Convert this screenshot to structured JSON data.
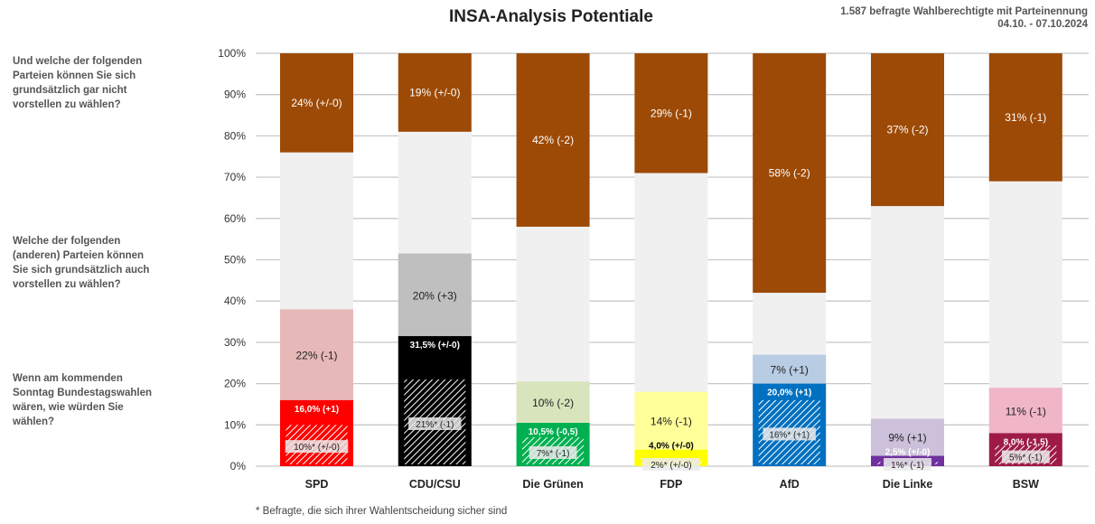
{
  "header": {
    "title": "INSA-Analysis Potentiale",
    "meta_line1": "1.587 befragte Wahlberechtigte mit Parteinennung",
    "meta_line2": "04.10. - 07.10.2024"
  },
  "questions": [
    "Und welche der folgenden Parteien können Sie sich grundsätzlich gar nicht vorstellen zu wählen?",
    "Welche der folgenden (anderen) Parteien können Sie sich grundsätzlich auch vorstellen zu wählen?",
    "Wenn am kommenden Sonntag Bundestagswahlen wären, wie würden Sie wählen?"
  ],
  "footnote": "* Befragte, die sich ihrer Wahlentscheidung sicher sind",
  "chart_data": {
    "type": "bar",
    "stacked": true,
    "ylim": [
      0,
      100
    ],
    "yticks": [
      "0%",
      "10%",
      "20%",
      "30%",
      "40%",
      "50%",
      "60%",
      "70%",
      "80%",
      "90%",
      "100%"
    ],
    "grid": true,
    "colors": {
      "rejection": "#9c4a06",
      "remainder": "#f0f0f0"
    },
    "categories": [
      "SPD",
      "CDU/CSU",
      "Die Grünen",
      "FDP",
      "AfD",
      "Die Linke",
      "BSW"
    ],
    "bars": [
      {
        "party": "SPD",
        "vote": 16.0,
        "vote_label": "16,0% (+1)",
        "vote_color": "#ff0000",
        "sure": 10,
        "sure_label": "10%* (+/-0)",
        "potential": 22,
        "potential_label": "22% (-1)",
        "potential_color": "#e6b8b7",
        "rejection": 24,
        "rejection_label": "24% (+/-0)"
      },
      {
        "party": "CDU/CSU",
        "vote": 31.5,
        "vote_label": "31,5% (+/-0)",
        "vote_color": "#000000",
        "sure": 21,
        "sure_label": "21%* (-1)",
        "potential": 20,
        "potential_label": "20% (+3)",
        "potential_color": "#bfbfbf",
        "rejection": 19,
        "rejection_label": "19% (+/-0)"
      },
      {
        "party": "Die Grünen",
        "vote": 10.5,
        "vote_label": "10,5% (-0,5)",
        "vote_color": "#00b050",
        "sure": 7,
        "sure_label": "7%* (-1)",
        "potential": 10,
        "potential_label": "10% (-2)",
        "potential_color": "#d8e4bc",
        "rejection": 42,
        "rejection_label": "42% (-2)"
      },
      {
        "party": "FDP",
        "vote": 4.0,
        "vote_label": "4,0% (+/-0)",
        "vote_color": "#ffff00",
        "sure": 2,
        "sure_label": "2%* (+/-0)",
        "potential": 14,
        "potential_label": "14% (-1)",
        "potential_color": "#ffff99",
        "rejection": 29,
        "rejection_label": "29% (-1)"
      },
      {
        "party": "AfD",
        "vote": 20.0,
        "vote_label": "20,0% (+1)",
        "vote_color": "#0070c0",
        "sure": 16,
        "sure_label": "16%* (+1)",
        "potential": 7,
        "potential_label": "7% (+1)",
        "potential_color": "#b8cce4",
        "rejection": 58,
        "rejection_label": "58% (-2)"
      },
      {
        "party": "Die Linke",
        "vote": 2.5,
        "vote_label": "2,5% (+/-0)",
        "vote_color": "#7030a0",
        "sure": 1,
        "sure_label": "1%* (-1)",
        "potential": 9,
        "potential_label": "9% (+1)",
        "potential_color": "#ccc0da",
        "rejection": 37,
        "rejection_label": "37% (-2)"
      },
      {
        "party": "BSW",
        "vote": 8.0,
        "vote_label": "8,0% (-1,5)",
        "vote_color": "#9e1b47",
        "sure": 5,
        "sure_label": "5%* (-1)",
        "potential": 11,
        "potential_label": "11% (-1)",
        "potential_color": "#f0b6c8",
        "rejection": 31,
        "rejection_label": "31% (-1)"
      }
    ]
  }
}
